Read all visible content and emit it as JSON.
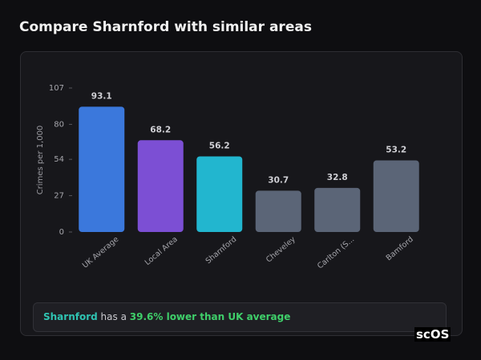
{
  "chart_data": {
    "type": "bar",
    "title": "Compare Sharnford with similar areas",
    "y_label": "Crimes per 1,000",
    "categories": [
      "UK Average",
      "Local Area",
      "Sharnford",
      "Cheveley",
      "Carlton (S...",
      "Bamford"
    ],
    "values": [
      93.1,
      68.2,
      56.2,
      30.7,
      32.8,
      53.2
    ],
    "colors": [
      "#3b78dc",
      "#7c4fd4",
      "#22b6cf",
      "#5b6577",
      "#5b6577",
      "#5b6577"
    ],
    "ylim": [
      0,
      107
    ],
    "yticks": [
      0,
      27,
      54,
      80,
      107
    ]
  },
  "callout": {
    "place": "Sharnford",
    "text": "has a",
    "highlight": "39.6% lower than UK average"
  },
  "watermark": "scOS"
}
